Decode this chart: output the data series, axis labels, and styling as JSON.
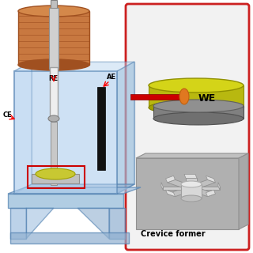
{
  "bg_color": "#ffffff",
  "left_panel": {
    "tank_color": "#b8d4f0",
    "tank_border": "#5080b0",
    "tank_alpha": 0.5,
    "wood_color": "#c87840",
    "wood_dark": "#a05020",
    "wood_mid": "#d4884a",
    "black_plate_color": "#111111",
    "yellow_disk_color": "#c8c832",
    "red_box_color": "#cc0000",
    "shaft_color": "#d8d8d8",
    "shaft_border": "#909090"
  },
  "right_panel": {
    "border_color": "#cc2020",
    "bg_color": "#f2f2f2",
    "yellow_top": "#d4d418",
    "yellow_side": "#b8b810",
    "gray_disk": "#888888",
    "gray_dark": "#606060",
    "red_line_color": "#cc0000",
    "orange_color": "#e07820",
    "we_label": "WE",
    "crevice_label": "Crevice former"
  }
}
